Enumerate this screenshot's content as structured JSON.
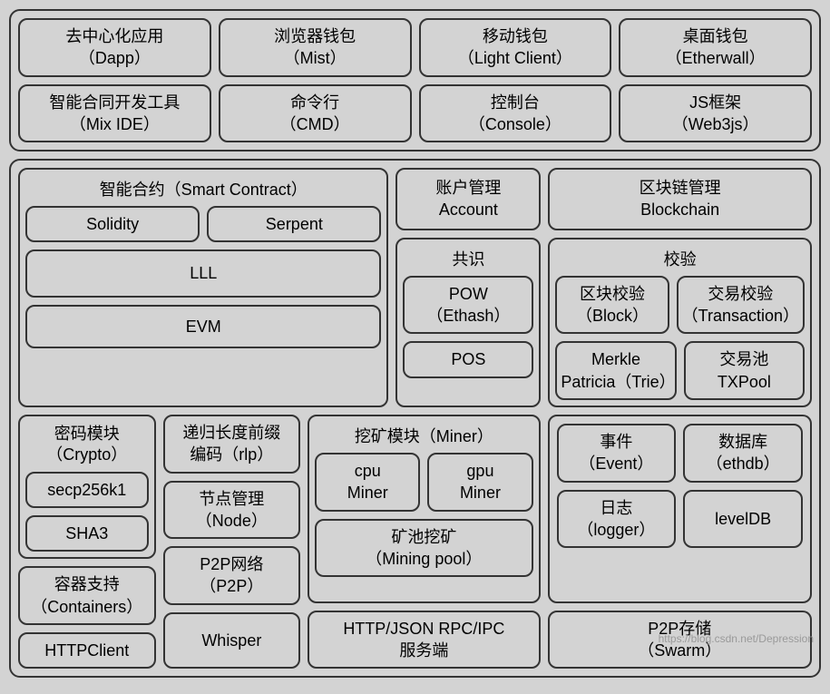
{
  "colors": {
    "bg": "#d3d3d3",
    "border": "#333333",
    "text": "#000000"
  },
  "top": {
    "r1": [
      {
        "zh": "去中心化应用",
        "en": "（Dapp）"
      },
      {
        "zh": "浏览器钱包",
        "en": "（Mist）"
      },
      {
        "zh": "移动钱包",
        "en": "（Light Client）"
      },
      {
        "zh": "桌面钱包",
        "en": "（Etherwall）"
      }
    ],
    "r2": [
      {
        "zh": "智能合同开发工具",
        "en": "（Mix IDE）"
      },
      {
        "zh": "命令行",
        "en": "（CMD）"
      },
      {
        "zh": "控制台",
        "en": "（Console）"
      },
      {
        "zh": "JS框架",
        "en": "（Web3js）"
      }
    ]
  },
  "sc": {
    "title": "智能合约（Smart Contract）",
    "solidity": "Solidity",
    "serpent": "Serpent",
    "lll": "LLL",
    "evm": "EVM"
  },
  "account": {
    "zh": "账户管理",
    "en": "Account"
  },
  "blockchain": {
    "zh": "区块链管理",
    "en": "Blockchain"
  },
  "consensus": {
    "title": "共识",
    "pow": {
      "zh": "POW",
      "en": "（Ethash）"
    },
    "pos": "POS"
  },
  "verify": {
    "title": "校验",
    "block": {
      "zh": "区块校验",
      "en": "（Block）"
    },
    "tx": {
      "zh": "交易校验",
      "en": "（Transaction）"
    },
    "merkle": {
      "l1": "Merkle",
      "l2": "Patricia（Trie）"
    },
    "txpool": {
      "zh": "交易池",
      "en": "TXPool"
    }
  },
  "crypto": {
    "title_zh": "密码模块",
    "title_en": "（Crypto）",
    "secp": "secp256k1",
    "sha3": "SHA3"
  },
  "rlp": {
    "zh": "递归长度前缀",
    "en": "编码（rlp）"
  },
  "node": {
    "zh": "节点管理",
    "en": "（Node）"
  },
  "p2p": {
    "zh": "P2P网络",
    "en": "（P2P）"
  },
  "containers": {
    "zh": "容器支持",
    "en": "（Containers）"
  },
  "httpclient": "HTTPClient",
  "whisper": "Whisper",
  "miner": {
    "title": "挖矿模块（Miner）",
    "cpu": {
      "l1": "cpu",
      "l2": "Miner"
    },
    "gpu": {
      "l1": "gpu",
      "l2": "Miner"
    },
    "pool": {
      "zh": "矿池挖矿",
      "en": "（Mining pool）"
    }
  },
  "rpc": {
    "l1": "HTTP/JSON RPC/IPC",
    "l2": "服务端"
  },
  "event": {
    "zh": "事件",
    "en": "（Event）"
  },
  "ethdb": {
    "zh": "数据库",
    "en": "（ethdb）"
  },
  "logger": {
    "zh": "日志",
    "en": "（logger）"
  },
  "leveldb": "levelDB",
  "swarm": {
    "zh": "P2P存储",
    "en": "（Swarm）"
  },
  "watermark": "https://blog.csdn.net/Depression"
}
